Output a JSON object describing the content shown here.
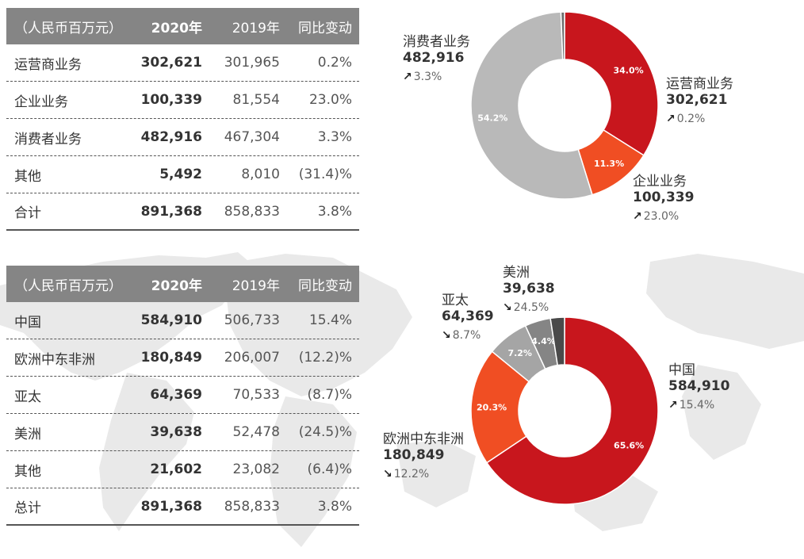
{
  "chart_data": [
    {
      "type": "table",
      "columns": [
        "（人民币百万元）",
        "2020年",
        "2019年",
        "同比变动"
      ],
      "rows": [
        [
          "运营商业务",
          "302,621",
          "301,965",
          "0.2%"
        ],
        [
          "企业业务",
          "100,339",
          "81,554",
          "23.0%"
        ],
        [
          "消费者业务",
          "482,916",
          "467,304",
          "3.3%"
        ],
        [
          "其他",
          "5,492",
          "8,010",
          "(31.4)%"
        ],
        [
          "合计",
          "891,368",
          "858,833",
          "3.8%"
        ]
      ]
    },
    {
      "type": "table",
      "columns": [
        "（人民币百万元）",
        "2020年",
        "2019年",
        "同比变动"
      ],
      "rows": [
        [
          "中国",
          "584,910",
          "506,733",
          "15.4%"
        ],
        [
          "欧洲中东非洲",
          "180,849",
          "206,007",
          "(12.2)%"
        ],
        [
          "亚太",
          "64,369",
          "70,533",
          "(8.7)%"
        ],
        [
          "美洲",
          "39,638",
          "52,478",
          "(24.5)%"
        ],
        [
          "其他",
          "21,602",
          "23,082",
          "(6.4)%"
        ],
        [
          "总计",
          "891,368",
          "858,833",
          "3.8%"
        ]
      ]
    },
    {
      "type": "pie",
      "categories": [
        "运营商业务",
        "企业业务",
        "消费者业务",
        "其他"
      ],
      "values": [
        302621,
        100339,
        482916,
        5492
      ],
      "percent_labels": [
        "34.0%",
        "11.3%",
        "54.2%",
        ""
      ],
      "colors": [
        "#c8161d",
        "#f04e23",
        "#b9b9b9",
        "#6d6d6d"
      ],
      "callouts": [
        {
          "name": "消费者业务",
          "value": "482,916",
          "change": "3.3%",
          "direction": "up"
        },
        {
          "name": "运营商业务",
          "value": "302,621",
          "change": "0.2%",
          "direction": "up"
        },
        {
          "name": "企业业务",
          "value": "100,339",
          "change": "23.0%",
          "direction": "up"
        }
      ]
    },
    {
      "type": "pie",
      "categories": [
        "中国",
        "欧洲中东非洲",
        "亚太",
        "美洲",
        "其他"
      ],
      "values": [
        584910,
        180849,
        64369,
        39638,
        21602
      ],
      "percent_labels": [
        "65.6%",
        "20.3%",
        "7.2%",
        "4.4%",
        ""
      ],
      "colors": [
        "#c8161d",
        "#f04e23",
        "#a5a5a5",
        "#858585",
        "#4a4a4a"
      ],
      "callouts": [
        {
          "name": "美洲",
          "value": "39,638",
          "change": "24.5%",
          "direction": "down"
        },
        {
          "name": "亚太",
          "value": "64,369",
          "change": "8.7%",
          "direction": "down"
        },
        {
          "name": "中国",
          "value": "584,910",
          "change": "15.4%",
          "direction": "up"
        },
        {
          "name": "欧洲中东非洲",
          "value": "180,849",
          "change": "12.2%",
          "direction": "down"
        }
      ]
    }
  ],
  "arrows": {
    "up": "↗",
    "down": "↘"
  }
}
